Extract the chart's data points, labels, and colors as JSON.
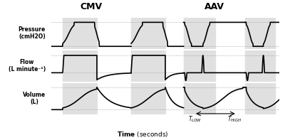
{
  "fig_width": 4.0,
  "fig_height": 1.97,
  "dpi": 100,
  "bg_color": "#ffffff",
  "panel_bg": "#e0e0e0",
  "cmv_label": "CMV",
  "aav_label": "AAV",
  "ylabel_pressure": "Pressure\n(cmH2O)",
  "ylabel_flow": "Flow\n(L minute⁻¹)",
  "ylabel_volume": "Volume\n(L)",
  "xlabel_bold": "Time",
  "xlabel_normal": " (seconds)",
  "t_low_label": "T",
  "t_low_sub": "LOW",
  "t_high_label": "T",
  "t_high_sub": "HIGH",
  "line_color": "#000000",
  "dotted_color": "#999999",
  "shaded_color": "#e0e0e0"
}
